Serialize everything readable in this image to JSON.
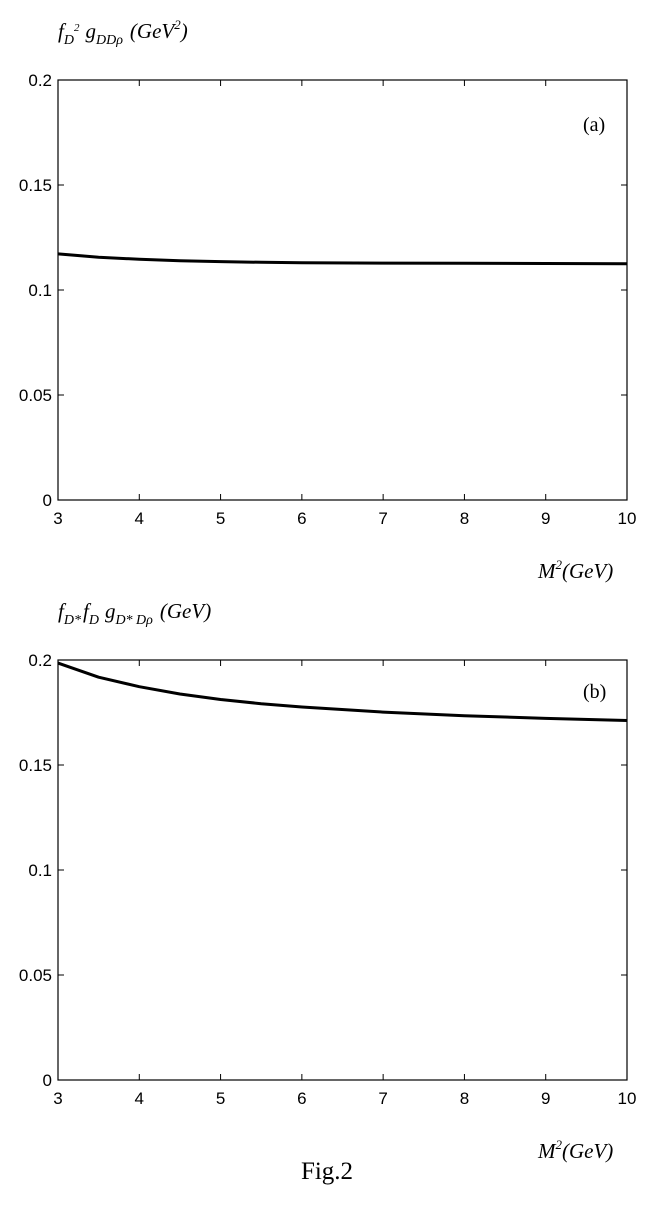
{
  "caption": "Fig.2",
  "chart_data": [
    {
      "type": "line",
      "panel_label": "(a)",
      "ylabel": {
        "base": "f",
        "sub": "D",
        "sup": "2",
        "coupling": "g",
        "coupling_sub": "DDρ",
        "unit": "(GeV",
        "unit_sup": "2",
        "unit_close": ")"
      },
      "xlabel": {
        "base": "M",
        "sup": "2",
        "rest": "(GeV)"
      },
      "xlim": [
        3,
        10
      ],
      "ylim": [
        0,
        0.2
      ],
      "xticks": [
        3,
        4,
        5,
        6,
        7,
        8,
        9,
        10
      ],
      "yticks": [
        0,
        0.05,
        0.1,
        0.15,
        0.2
      ],
      "ytick_labels": [
        "0",
        "0.05",
        "0.1",
        "0.15",
        "0.2"
      ],
      "grid": false,
      "series": [
        {
          "x": [
            3,
            3.5,
            4,
            4.5,
            5,
            5.5,
            6,
            7,
            8,
            9,
            10
          ],
          "y": [
            0.1172,
            0.1156,
            0.1146,
            0.1139,
            0.1135,
            0.1132,
            0.113,
            0.1128,
            0.1127,
            0.1126,
            0.1125
          ]
        }
      ]
    },
    {
      "type": "line",
      "panel_label": "(b)",
      "ylabel": {
        "f1": "f",
        "f1_sub": "D*",
        "f2": "f",
        "f2_sub": "D",
        "coupling": "g",
        "coupling_sub": "D* Dρ",
        "unit": "(GeV)"
      },
      "xlabel": {
        "base": "M",
        "sup": "2",
        "rest": "(GeV)"
      },
      "xlim": [
        3,
        10
      ],
      "ylim": [
        0,
        0.2
      ],
      "xticks": [
        3,
        4,
        5,
        6,
        7,
        8,
        9,
        10
      ],
      "yticks": [
        0,
        0.05,
        0.1,
        0.15,
        0.2
      ],
      "ytick_labels": [
        "0",
        "0.05",
        "0.1",
        "0.15",
        "0.2"
      ],
      "grid": false,
      "series": [
        {
          "x": [
            3,
            3.5,
            4,
            4.5,
            5,
            5.5,
            6,
            7,
            8,
            9,
            10
          ],
          "y": [
            0.1985,
            0.1918,
            0.1873,
            0.1838,
            0.1812,
            0.1792,
            0.1776,
            0.1752,
            0.1735,
            0.1722,
            0.1712
          ]
        }
      ]
    }
  ]
}
